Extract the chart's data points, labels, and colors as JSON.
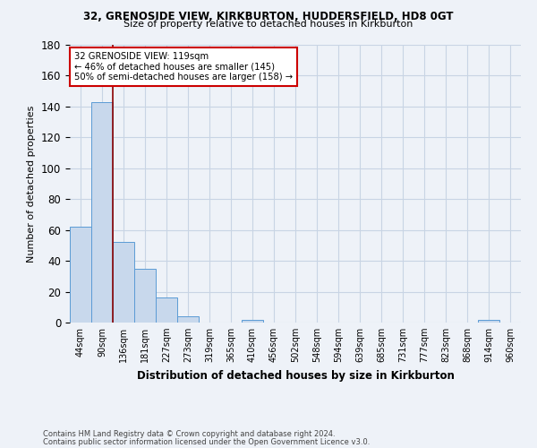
{
  "title1": "32, GRENOSIDE VIEW, KIRKBURTON, HUDDERSFIELD, HD8 0GT",
  "title2": "Size of property relative to detached houses in Kirkburton",
  "xlabel": "Distribution of detached houses by size in Kirkburton",
  "ylabel": "Number of detached properties",
  "footnote1": "Contains HM Land Registry data © Crown copyright and database right 2024.",
  "footnote2": "Contains public sector information licensed under the Open Government Licence v3.0.",
  "categories": [
    "44sqm",
    "90sqm",
    "136sqm",
    "181sqm",
    "227sqm",
    "273sqm",
    "319sqm",
    "365sqm",
    "410sqm",
    "456sqm",
    "502sqm",
    "548sqm",
    "594sqm",
    "639sqm",
    "685sqm",
    "731sqm",
    "777sqm",
    "823sqm",
    "868sqm",
    "914sqm",
    "960sqm"
  ],
  "values": [
    62,
    143,
    52,
    35,
    16,
    4,
    0,
    0,
    2,
    0,
    0,
    0,
    0,
    0,
    0,
    0,
    0,
    0,
    0,
    2,
    0
  ],
  "bar_color": "#c8d8ec",
  "bar_edge_color": "#5b9bd5",
  "grid_color": "#c8d4e4",
  "property_line_color": "#8b0000",
  "annotation_line1": "32 GRENOSIDE VIEW: 119sqm",
  "annotation_line2": "← 46% of detached houses are smaller (145)",
  "annotation_line3": "50% of semi-detached houses are larger (158) →",
  "annotation_box_color": "#ffffff",
  "annotation_box_edge": "#cc0000",
  "ylim": [
    0,
    180
  ],
  "yticks": [
    0,
    20,
    40,
    60,
    80,
    100,
    120,
    140,
    160,
    180
  ],
  "bg_color": "#eef2f8"
}
